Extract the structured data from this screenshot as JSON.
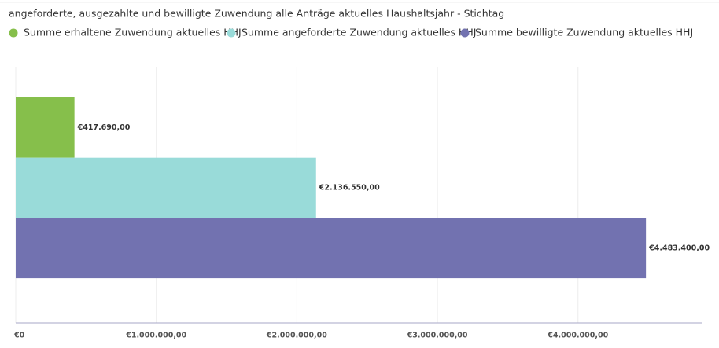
{
  "chart_data": {
    "type": "bar",
    "orientation": "horizontal",
    "title": "angeforderte, ausgezahlte und bewilligte Zuwendung alle Anträge aktuelles Haushaltsjahr - Stichtag",
    "categories": [
      null
    ],
    "series": [
      {
        "name": "Summe erhaltene Zuwendung aktuelles HHJ",
        "color": "#86bf4b",
        "values": [
          417690
        ],
        "value_labels": [
          "€417.690,00"
        ]
      },
      {
        "name": "Summe angeforderte Zuwendung aktuelles HHJ",
        "color": "#99dbd9",
        "values": [
          2136550
        ],
        "value_labels": [
          "€2.136.550,00"
        ]
      },
      {
        "name": "Summe bewilligte Zuwendung aktuelles HHJ",
        "color": "#7272b0",
        "values": [
          4483400
        ],
        "value_labels": [
          "€4.483.400,00"
        ]
      }
    ],
    "xlim": [
      0,
      4880000
    ],
    "xticks": [
      {
        "value": 0,
        "label": "€0"
      },
      {
        "value": 1000000,
        "label": "€1.000.000,00"
      },
      {
        "value": 2000000,
        "label": "€2.000.000,00"
      },
      {
        "value": 3000000,
        "label": "€3.000.000,00"
      },
      {
        "value": 4000000,
        "label": "€4.000.000,00"
      }
    ],
    "grid": true
  }
}
